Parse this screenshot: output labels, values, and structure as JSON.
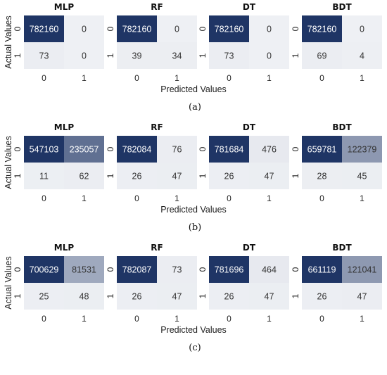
{
  "chart_data": [
    {
      "type": "heatmap",
      "panel_label": "(a)",
      "ylabel": "Actual Values",
      "xlabel": "Predicted Values",
      "row_labels": [
        "0",
        "1"
      ],
      "col_labels": [
        "0",
        "1"
      ],
      "matrices": [
        {
          "title": "MLP",
          "values": [
            [
              782160,
              0
            ],
            [
              73,
              0
            ]
          ]
        },
        {
          "title": "RF",
          "values": [
            [
              782160,
              0
            ],
            [
              39,
              34
            ]
          ]
        },
        {
          "title": "DT",
          "values": [
            [
              782160,
              0
            ],
            [
              73,
              0
            ]
          ]
        },
        {
          "title": "BDT",
          "values": [
            [
              782160,
              0
            ],
            [
              69,
              4
            ]
          ]
        }
      ]
    },
    {
      "type": "heatmap",
      "panel_label": "(b)",
      "ylabel": "Actual Values",
      "xlabel": "Predicted Values",
      "row_labels": [
        "0",
        "1"
      ],
      "col_labels": [
        "0",
        "1"
      ],
      "matrices": [
        {
          "title": "MLP",
          "values": [
            [
              547103,
              235057
            ],
            [
              11,
              62
            ]
          ]
        },
        {
          "title": "RF",
          "values": [
            [
              782084,
              76
            ],
            [
              26,
              47
            ]
          ]
        },
        {
          "title": "DT",
          "values": [
            [
              781684,
              476
            ],
            [
              26,
              47
            ]
          ]
        },
        {
          "title": "BDT",
          "values": [
            [
              659781,
              122379
            ],
            [
              28,
              45
            ]
          ]
        }
      ]
    },
    {
      "type": "heatmap",
      "panel_label": "(c)",
      "ylabel": "Actual Values",
      "xlabel": "Predicted Values",
      "row_labels": [
        "0",
        "1"
      ],
      "col_labels": [
        "0",
        "1"
      ],
      "matrices": [
        {
          "title": "MLP",
          "values": [
            [
              700629,
              81531
            ],
            [
              25,
              48
            ]
          ]
        },
        {
          "title": "RF",
          "values": [
            [
              782087,
              73
            ],
            [
              26,
              47
            ]
          ]
        },
        {
          "title": "DT",
          "values": [
            [
              781696,
              464
            ],
            [
              26,
              47
            ]
          ]
        },
        {
          "title": "BDT",
          "values": [
            [
              661119,
              121041
            ],
            [
              26,
              47
            ]
          ]
        }
      ]
    }
  ],
  "colors": {
    "high": "#1f3565",
    "low": "#eef0f4",
    "text_dark": "#333333",
    "text_light": "#ffffff"
  }
}
